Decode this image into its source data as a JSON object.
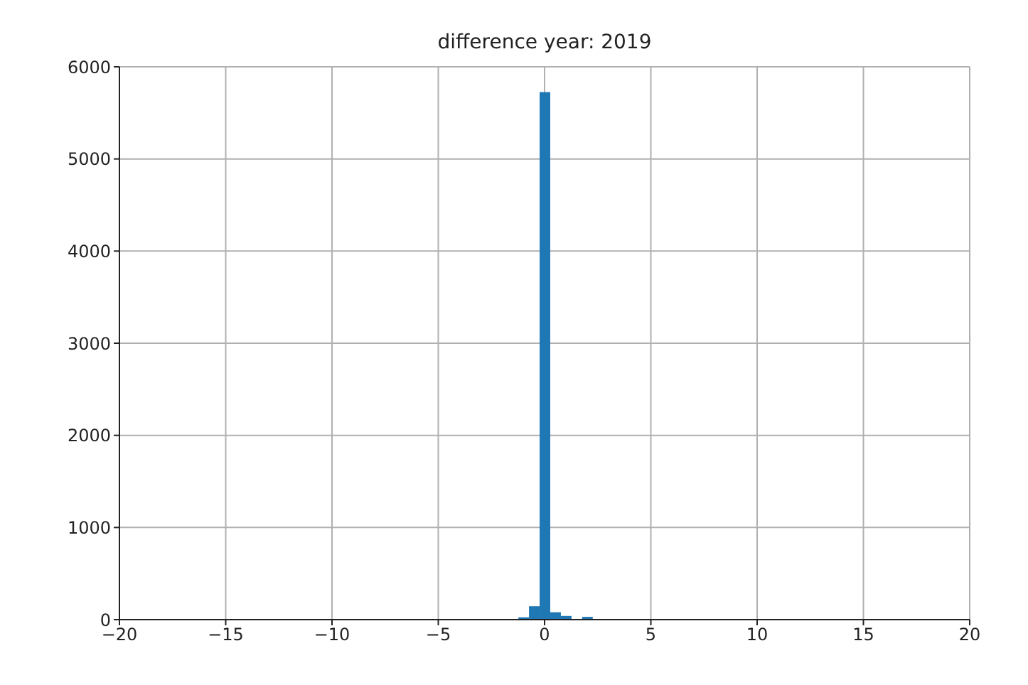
{
  "chart_data": {
    "type": "histogram",
    "title": "difference year: 2019",
    "bins": [
      -1.25,
      -0.75,
      -0.25,
      0.25,
      0.75,
      1.25,
      1.75,
      2.25
    ],
    "values": [
      25,
      145,
      5725,
      80,
      40,
      0,
      30
    ],
    "color": "#1f77b4",
    "xlim": [
      -20,
      20
    ],
    "xticks": [
      {
        "value": -20,
        "label": "−20"
      },
      {
        "value": -15,
        "label": "−15"
      },
      {
        "value": -10,
        "label": "−10"
      },
      {
        "value": -5,
        "label": "−5"
      },
      0,
      5,
      10,
      15,
      20
    ],
    "ylim": [
      0,
      6000
    ],
    "yticks": [
      0,
      1000,
      2000,
      3000,
      4000,
      5000,
      6000
    ],
    "grid": true
  }
}
